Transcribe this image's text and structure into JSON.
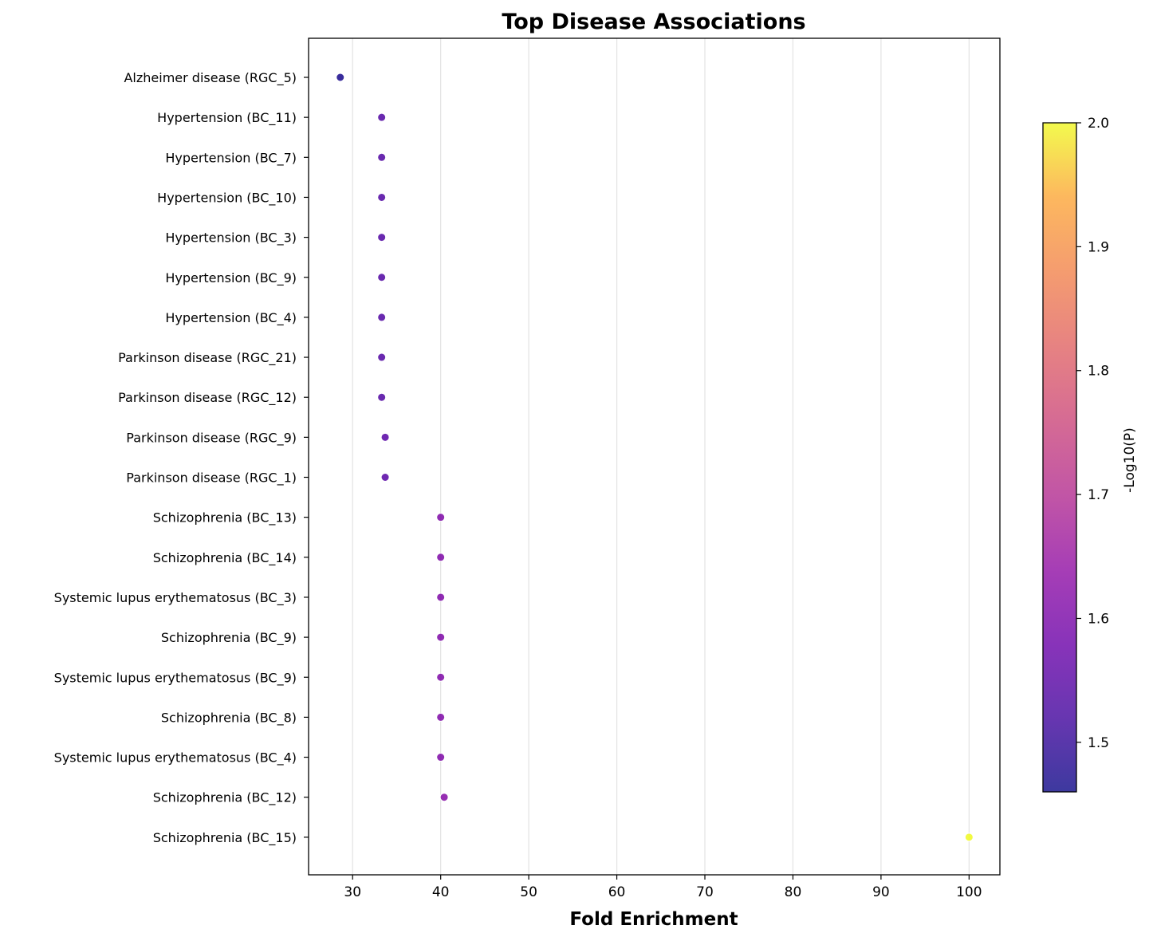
{
  "chart_data": {
    "type": "scatter",
    "title": "Top Disease Associations",
    "xlabel": "Fold Enrichment",
    "ylabel": "",
    "xlim": [
      25,
      103.5
    ],
    "xticks": [
      30,
      40,
      50,
      60,
      70,
      80,
      90,
      100
    ],
    "grid": "vertical",
    "categories": [
      "Alzheimer disease (RGC_5)",
      "Hypertension (BC_11)",
      "Hypertension (BC_7)",
      "Hypertension (BC_10)",
      "Hypertension (BC_3)",
      "Hypertension (BC_9)",
      "Hypertension (BC_4)",
      "Parkinson disease (RGC_21)",
      "Parkinson disease (RGC_12)",
      "Parkinson disease (RGC_9)",
      "Parkinson disease (RGC_1)",
      "Schizophrenia (BC_13)",
      "Schizophrenia (BC_14)",
      "Systemic lupus erythematosus (BC_3)",
      "Schizophrenia (BC_9)",
      "Systemic lupus erythematosus (BC_9)",
      "Schizophrenia (BC_8)",
      "Systemic lupus erythematosus (BC_4)",
      "Schizophrenia (BC_12)",
      "Schizophrenia (BC_15)"
    ],
    "x": [
      28.6,
      33.3,
      33.3,
      33.3,
      33.3,
      33.3,
      33.3,
      33.3,
      33.3,
      33.7,
      33.7,
      40.0,
      40.0,
      40.0,
      40.0,
      40.0,
      40.0,
      40.0,
      40.4,
      100.0
    ],
    "color_values": [
      1.47,
      1.54,
      1.54,
      1.54,
      1.54,
      1.54,
      1.54,
      1.54,
      1.54,
      1.55,
      1.55,
      1.61,
      1.61,
      1.61,
      1.61,
      1.61,
      1.61,
      1.61,
      1.62,
      2.0
    ],
    "colorbar": {
      "label": "-Log10(P)",
      "range": [
        1.46,
        2.0
      ],
      "ticks": [
        1.5,
        1.6,
        1.7,
        1.8,
        1.9,
        2.0
      ],
      "colormap": "plasma"
    }
  }
}
